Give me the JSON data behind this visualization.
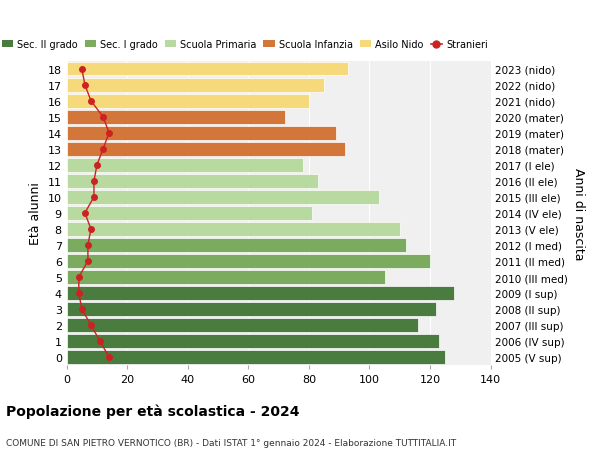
{
  "ages": [
    18,
    17,
    16,
    15,
    14,
    13,
    12,
    11,
    10,
    9,
    8,
    7,
    6,
    5,
    4,
    3,
    2,
    1,
    0
  ],
  "years_labels": [
    "2005 (V sup)",
    "2006 (IV sup)",
    "2007 (III sup)",
    "2008 (II sup)",
    "2009 (I sup)",
    "2010 (III med)",
    "2011 (II med)",
    "2012 (I med)",
    "2013 (V ele)",
    "2014 (IV ele)",
    "2015 (III ele)",
    "2016 (II ele)",
    "2017 (I ele)",
    "2018 (mater)",
    "2019 (mater)",
    "2020 (mater)",
    "2021 (nido)",
    "2022 (nido)",
    "2023 (nido)"
  ],
  "bar_values": [
    125,
    123,
    116,
    122,
    128,
    105,
    120,
    112,
    110,
    81,
    103,
    83,
    78,
    92,
    89,
    72,
    80,
    85,
    93
  ],
  "bar_colors": [
    "#4a7c3f",
    "#4a7c3f",
    "#4a7c3f",
    "#4a7c3f",
    "#4a7c3f",
    "#7aab5e",
    "#7aab5e",
    "#7aab5e",
    "#b8d9a0",
    "#b8d9a0",
    "#b8d9a0",
    "#b8d9a0",
    "#b8d9a0",
    "#d2763a",
    "#d2763a",
    "#d2763a",
    "#f5d97a",
    "#f5d97a",
    "#f5d97a"
  ],
  "stranieri_values": [
    14,
    11,
    8,
    5,
    4,
    4,
    7,
    7,
    8,
    6,
    9,
    9,
    10,
    12,
    14,
    12,
    8,
    6,
    5
  ],
  "legend_labels": [
    "Sec. II grado",
    "Sec. I grado",
    "Scuola Primaria",
    "Scuola Infanzia",
    "Asilo Nido",
    "Stranieri"
  ],
  "legend_colors": [
    "#4a7c3f",
    "#7aab5e",
    "#b8d9a0",
    "#d2763a",
    "#f5d97a",
    "#cc2222"
  ],
  "title": "Popolazione per età scolastica - 2024",
  "subtitle": "COMUNE DI SAN PIETRO VERNOTICO (BR) - Dati ISTAT 1° gennaio 2024 - Elaborazione TUTTITALIA.IT",
  "ylabel_left": "Età alunni",
  "ylabel_right": "Anni di nascita",
  "xlim": [
    0,
    140
  ],
  "background_color": "#ffffff",
  "plot_bg_color": "#f0f0f0"
}
